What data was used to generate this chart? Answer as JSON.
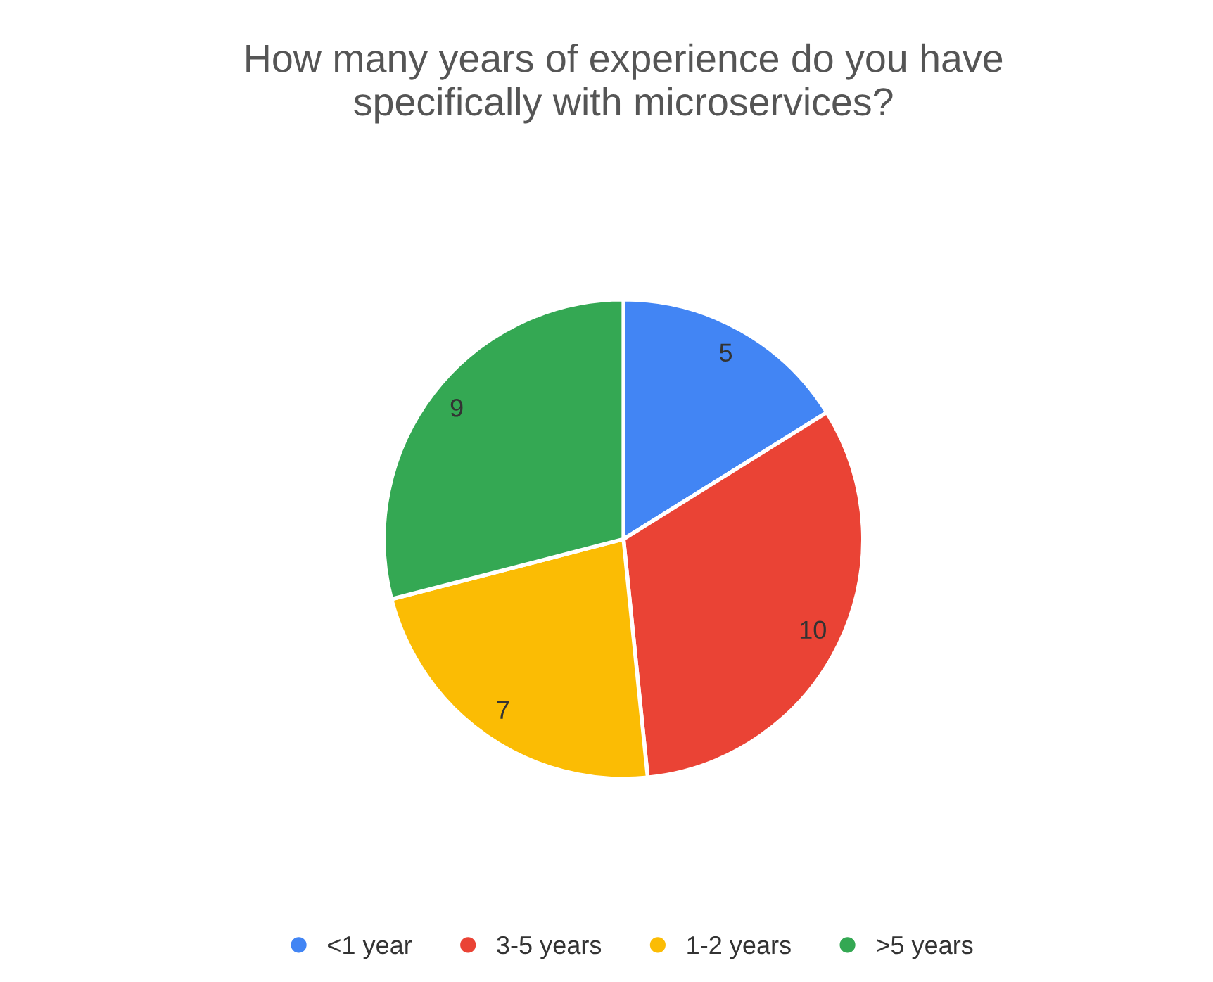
{
  "chart_data": {
    "type": "pie",
    "title": "How many years of experience do you have\nspecifically with microservices?",
    "categories": [
      "<1 year",
      "3-5 years",
      "1-2 years",
      ">5 years"
    ],
    "values": [
      5,
      10,
      7,
      9
    ],
    "colors": [
      "#4285f4",
      "#ea4335",
      "#fbbc04",
      "#34a853"
    ],
    "data_labels": true,
    "legend": "bottom"
  }
}
